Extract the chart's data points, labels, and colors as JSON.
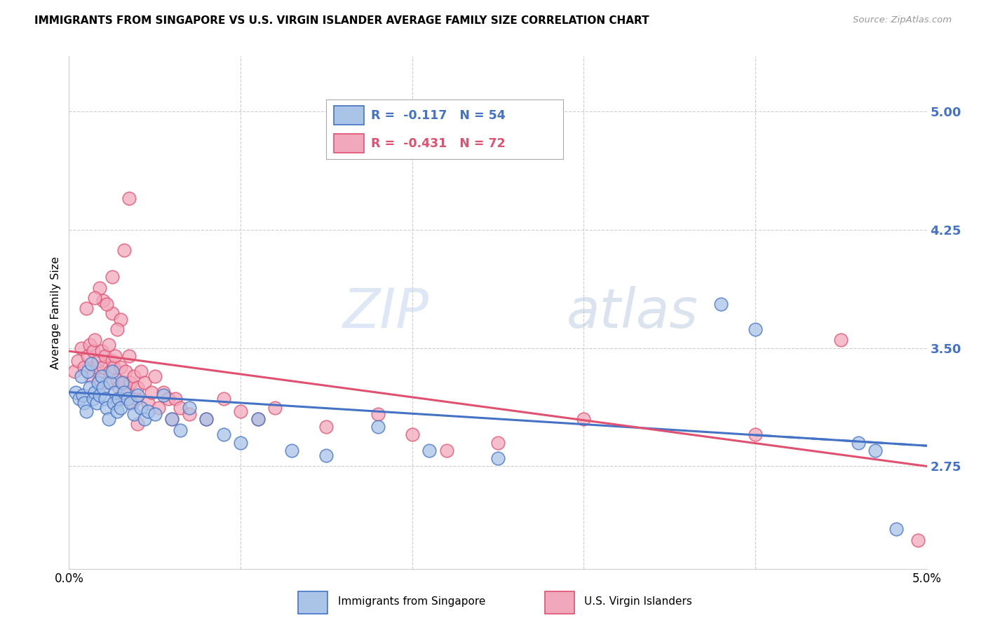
{
  "title": "IMMIGRANTS FROM SINGAPORE VS U.S. VIRGIN ISLANDER AVERAGE FAMILY SIZE CORRELATION CHART",
  "source": "Source: ZipAtlas.com",
  "ylabel": "Average Family Size",
  "yticks": [
    2.75,
    3.5,
    4.25,
    5.0
  ],
  "xlim": [
    0.0,
    5.0
  ],
  "ylim": [
    2.1,
    5.35
  ],
  "legend_label1": "Immigrants from Singapore",
  "legend_label2": "U.S. Virgin Islanders",
  "R1": -0.117,
  "N1": 54,
  "R2": -0.431,
  "N2": 72,
  "color1": "#aac4e8",
  "color2": "#f2a8bc",
  "edge_color1": "#4472C4",
  "edge_color2": "#E05070",
  "line_color1": "#4472C4",
  "line_color2": "#E05070",
  "ytick_color": "#4472C4",
  "watermark_color": "#d0dff5",
  "grid_color": "#cccccc",
  "line1_x0": 0.0,
  "line1_y0": 3.22,
  "line1_x1": 5.0,
  "line1_y1": 2.88,
  "line2_x0": 0.0,
  "line2_y0": 3.48,
  "line2_x1": 5.0,
  "line2_y1": 2.75,
  "scatter1_x": [
    0.04,
    0.06,
    0.07,
    0.08,
    0.09,
    0.1,
    0.11,
    0.12,
    0.13,
    0.14,
    0.15,
    0.16,
    0.17,
    0.18,
    0.19,
    0.2,
    0.21,
    0.22,
    0.23,
    0.24,
    0.25,
    0.26,
    0.27,
    0.28,
    0.29,
    0.3,
    0.31,
    0.32,
    0.34,
    0.36,
    0.38,
    0.4,
    0.42,
    0.44,
    0.46,
    0.5,
    0.55,
    0.6,
    0.65,
    0.7,
    0.8,
    0.9,
    1.0,
    1.1,
    1.3,
    1.5,
    1.8,
    2.1,
    2.5,
    3.8,
    4.0,
    4.6,
    4.7,
    4.82
  ],
  "scatter1_y": [
    3.22,
    3.18,
    3.32,
    3.2,
    3.15,
    3.1,
    3.35,
    3.25,
    3.4,
    3.18,
    3.22,
    3.15,
    3.28,
    3.2,
    3.32,
    3.25,
    3.18,
    3.12,
    3.05,
    3.28,
    3.35,
    3.15,
    3.22,
    3.1,
    3.18,
    3.12,
    3.28,
    3.22,
    3.18,
    3.15,
    3.08,
    3.2,
    3.12,
    3.05,
    3.1,
    3.08,
    3.2,
    3.05,
    2.98,
    3.12,
    3.05,
    2.95,
    2.9,
    3.05,
    2.85,
    2.82,
    3.0,
    2.85,
    2.8,
    3.78,
    3.62,
    2.9,
    2.85,
    2.35
  ],
  "scatter2_x": [
    0.03,
    0.05,
    0.07,
    0.09,
    0.11,
    0.12,
    0.13,
    0.14,
    0.15,
    0.16,
    0.17,
    0.18,
    0.19,
    0.2,
    0.21,
    0.22,
    0.23,
    0.24,
    0.25,
    0.26,
    0.27,
    0.28,
    0.29,
    0.3,
    0.31,
    0.32,
    0.33,
    0.34,
    0.35,
    0.36,
    0.37,
    0.38,
    0.39,
    0.4,
    0.42,
    0.44,
    0.46,
    0.48,
    0.5,
    0.52,
    0.55,
    0.58,
    0.6,
    0.62,
    0.65,
    0.7,
    0.8,
    0.9,
    1.0,
    1.1,
    1.2,
    1.5,
    1.8,
    2.0,
    2.2,
    2.5,
    3.0,
    4.0,
    4.5,
    0.2,
    0.25,
    0.3,
    0.35,
    0.25,
    0.18,
    0.22,
    0.28,
    0.32,
    0.15,
    0.1,
    0.4,
    4.95
  ],
  "scatter2_y": [
    3.35,
    3.42,
    3.5,
    3.38,
    3.45,
    3.52,
    3.32,
    3.48,
    3.55,
    3.38,
    3.42,
    3.3,
    3.48,
    3.38,
    3.45,
    3.28,
    3.52,
    3.35,
    3.42,
    3.38,
    3.45,
    3.3,
    3.25,
    3.38,
    3.18,
    3.28,
    3.35,
    3.22,
    3.45,
    3.28,
    3.15,
    3.32,
    3.18,
    3.25,
    3.35,
    3.28,
    3.15,
    3.22,
    3.32,
    3.12,
    3.22,
    3.18,
    3.05,
    3.18,
    3.12,
    3.08,
    3.05,
    3.18,
    3.1,
    3.05,
    3.12,
    3.0,
    3.08,
    2.95,
    2.85,
    2.9,
    3.05,
    2.95,
    3.55,
    3.8,
    3.72,
    3.68,
    4.45,
    3.95,
    3.88,
    3.78,
    3.62,
    4.12,
    3.82,
    3.75,
    3.02,
    2.28
  ]
}
